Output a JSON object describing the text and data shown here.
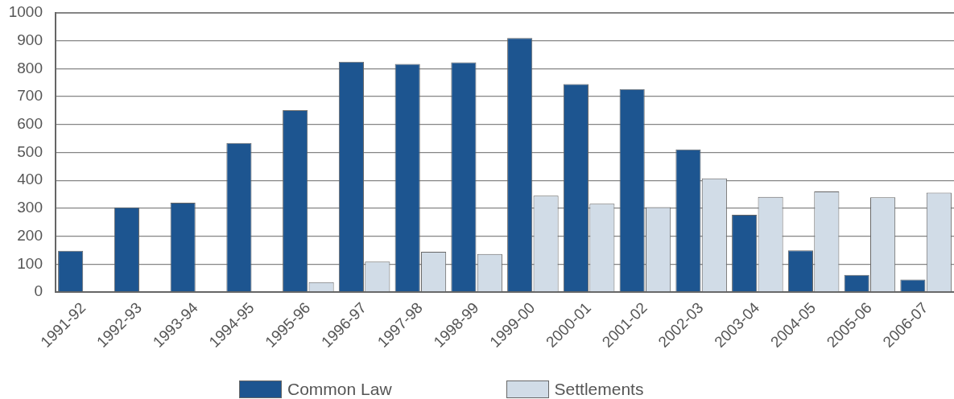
{
  "chart_data": {
    "type": "bar",
    "categories": [
      "1991-92",
      "1992-93",
      "1993-94",
      "1994-95",
      "1995-96",
      "1996-97",
      "1997-98",
      "1998-99",
      "1999-00",
      "2000-01",
      "2001-02",
      "2002-03",
      "2003-04",
      "2004-05",
      "2005-06",
      "2006-07"
    ],
    "series": [
      {
        "name": "Common Law",
        "color": "#1d5590",
        "values": [
          148,
          303,
          320,
          534,
          651,
          825,
          817,
          823,
          910,
          745,
          727,
          511,
          277,
          149,
          61,
          45
        ]
      },
      {
        "name": "Settlements",
        "color": "#d1dce7",
        "values": [
          null,
          null,
          null,
          null,
          35,
          109,
          144,
          136,
          345,
          316,
          304,
          407,
          341,
          360,
          339,
          356
        ]
      }
    ],
    "ylim": [
      0,
      1000
    ],
    "yticks": [
      0,
      100,
      200,
      300,
      400,
      500,
      600,
      700,
      800,
      900,
      1000
    ],
    "grid": "y",
    "legend": "bottom"
  }
}
